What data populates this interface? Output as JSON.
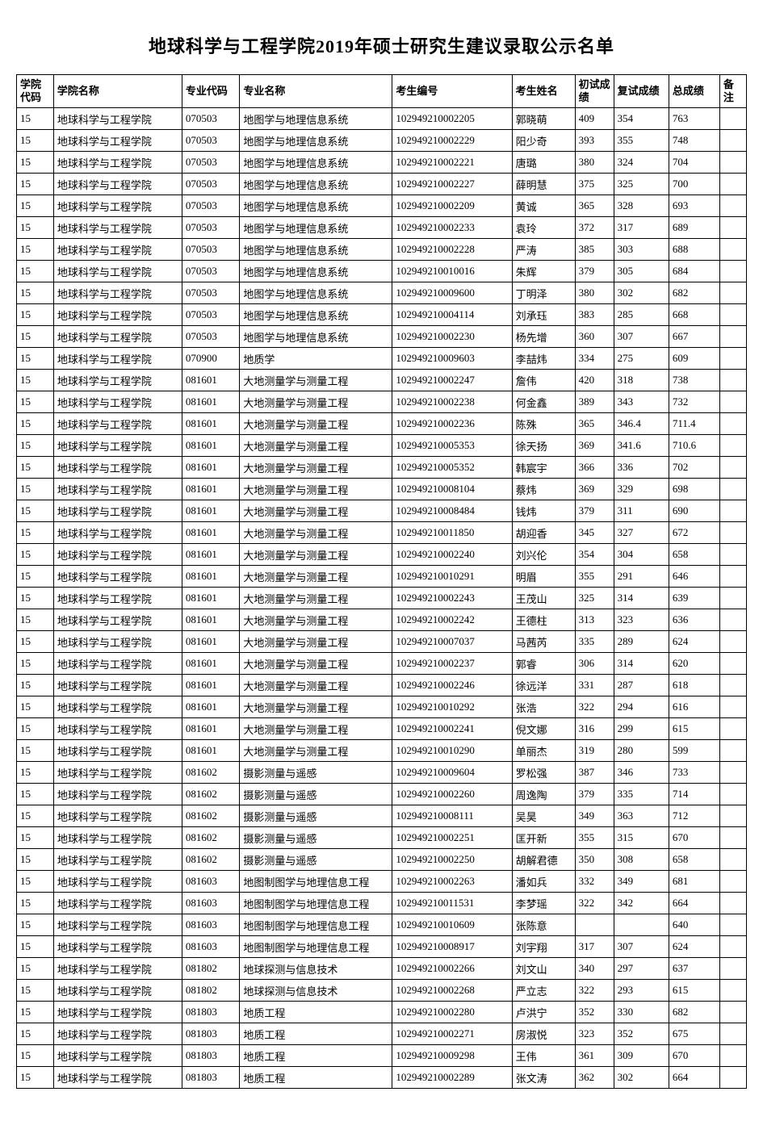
{
  "title": "地球科学与工程学院2019年硕士研究生建议录取公示名单",
  "columns": [
    "学院代码",
    "学院名称",
    "专业代码",
    "专业名称",
    "考生编号",
    "考生姓名",
    "初试成绩",
    "复试成绩",
    "总成绩",
    "备注"
  ],
  "rows": [
    [
      "15",
      "地球科学与工程学院",
      "070503",
      "地图学与地理信息系统",
      "102949210002205",
      "郭晓萌",
      "409",
      "354",
      "763",
      ""
    ],
    [
      "15",
      "地球科学与工程学院",
      "070503",
      "地图学与地理信息系统",
      "102949210002229",
      "阳少奇",
      "393",
      "355",
      "748",
      ""
    ],
    [
      "15",
      "地球科学与工程学院",
      "070503",
      "地图学与地理信息系统",
      "102949210002221",
      "唐璐",
      "380",
      "324",
      "704",
      ""
    ],
    [
      "15",
      "地球科学与工程学院",
      "070503",
      "地图学与地理信息系统",
      "102949210002227",
      "薛明慧",
      "375",
      "325",
      "700",
      ""
    ],
    [
      "15",
      "地球科学与工程学院",
      "070503",
      "地图学与地理信息系统",
      "102949210002209",
      "黄诚",
      "365",
      "328",
      "693",
      ""
    ],
    [
      "15",
      "地球科学与工程学院",
      "070503",
      "地图学与地理信息系统",
      "102949210002233",
      "袁玲",
      "372",
      "317",
      "689",
      ""
    ],
    [
      "15",
      "地球科学与工程学院",
      "070503",
      "地图学与地理信息系统",
      "102949210002228",
      "严涛",
      "385",
      "303",
      "688",
      ""
    ],
    [
      "15",
      "地球科学与工程学院",
      "070503",
      "地图学与地理信息系统",
      "102949210010016",
      "朱辉",
      "379",
      "305",
      "684",
      ""
    ],
    [
      "15",
      "地球科学与工程学院",
      "070503",
      "地图学与地理信息系统",
      "102949210009600",
      "丁明泽",
      "380",
      "302",
      "682",
      ""
    ],
    [
      "15",
      "地球科学与工程学院",
      "070503",
      "地图学与地理信息系统",
      "102949210004114",
      "刘承珏",
      "383",
      "285",
      "668",
      ""
    ],
    [
      "15",
      "地球科学与工程学院",
      "070503",
      "地图学与地理信息系统",
      "102949210002230",
      "杨先增",
      "360",
      "307",
      "667",
      ""
    ],
    [
      "15",
      "地球科学与工程学院",
      "070900",
      "地质学",
      "102949210009603",
      "李喆炜",
      "334",
      "275",
      "609",
      ""
    ],
    [
      "15",
      "地球科学与工程学院",
      "081601",
      "大地测量学与测量工程",
      "102949210002247",
      "詹伟",
      "420",
      "318",
      "738",
      ""
    ],
    [
      "15",
      "地球科学与工程学院",
      "081601",
      "大地测量学与测量工程",
      "102949210002238",
      "何金鑫",
      "389",
      "343",
      "732",
      ""
    ],
    [
      "15",
      "地球科学与工程学院",
      "081601",
      "大地测量学与测量工程",
      "102949210002236",
      "陈殊",
      "365",
      "346.4",
      "711.4",
      ""
    ],
    [
      "15",
      "地球科学与工程学院",
      "081601",
      "大地测量学与测量工程",
      "102949210005353",
      "徐天扬",
      "369",
      "341.6",
      "710.6",
      ""
    ],
    [
      "15",
      "地球科学与工程学院",
      "081601",
      "大地测量学与测量工程",
      "102949210005352",
      "韩宸宇",
      "366",
      "336",
      "702",
      ""
    ],
    [
      "15",
      "地球科学与工程学院",
      "081601",
      "大地测量学与测量工程",
      "102949210008104",
      "蔡炜",
      "369",
      "329",
      "698",
      ""
    ],
    [
      "15",
      "地球科学与工程学院",
      "081601",
      "大地测量学与测量工程",
      "102949210008484",
      "钱炜",
      "379",
      "311",
      "690",
      ""
    ],
    [
      "15",
      "地球科学与工程学院",
      "081601",
      "大地测量学与测量工程",
      "102949210011850",
      "胡迎香",
      "345",
      "327",
      "672",
      ""
    ],
    [
      "15",
      "地球科学与工程学院",
      "081601",
      "大地测量学与测量工程",
      "102949210002240",
      "刘兴伦",
      "354",
      "304",
      "658",
      ""
    ],
    [
      "15",
      "地球科学与工程学院",
      "081601",
      "大地测量学与测量工程",
      "102949210010291",
      "明眉",
      "355",
      "291",
      "646",
      ""
    ],
    [
      "15",
      "地球科学与工程学院",
      "081601",
      "大地测量学与测量工程",
      "102949210002243",
      "王茂山",
      "325",
      "314",
      "639",
      ""
    ],
    [
      "15",
      "地球科学与工程学院",
      "081601",
      "大地测量学与测量工程",
      "102949210002242",
      "王德柱",
      "313",
      "323",
      "636",
      ""
    ],
    [
      "15",
      "地球科学与工程学院",
      "081601",
      "大地测量学与测量工程",
      "102949210007037",
      "马茜芮",
      "335",
      "289",
      "624",
      ""
    ],
    [
      "15",
      "地球科学与工程学院",
      "081601",
      "大地测量学与测量工程",
      "102949210002237",
      "郭睿",
      "306",
      "314",
      "620",
      ""
    ],
    [
      "15",
      "地球科学与工程学院",
      "081601",
      "大地测量学与测量工程",
      "102949210002246",
      "徐远洋",
      "331",
      "287",
      "618",
      ""
    ],
    [
      "15",
      "地球科学与工程学院",
      "081601",
      "大地测量学与测量工程",
      "102949210010292",
      "张浩",
      "322",
      "294",
      "616",
      ""
    ],
    [
      "15",
      "地球科学与工程学院",
      "081601",
      "大地测量学与测量工程",
      "102949210002241",
      "倪文娜",
      "316",
      "299",
      "615",
      ""
    ],
    [
      "15",
      "地球科学与工程学院",
      "081601",
      "大地测量学与测量工程",
      "102949210010290",
      "单丽杰",
      "319",
      "280",
      "599",
      ""
    ],
    [
      "15",
      "地球科学与工程学院",
      "081602",
      "摄影测量与遥感",
      "102949210009604",
      "罗松强",
      "387",
      "346",
      "733",
      ""
    ],
    [
      "15",
      "地球科学与工程学院",
      "081602",
      "摄影测量与遥感",
      "102949210002260",
      "周逸陶",
      "379",
      "335",
      "714",
      ""
    ],
    [
      "15",
      "地球科学与工程学院",
      "081602",
      "摄影测量与遥感",
      "102949210008111",
      "吴昊",
      "349",
      "363",
      "712",
      ""
    ],
    [
      "15",
      "地球科学与工程学院",
      "081602",
      "摄影测量与遥感",
      "102949210002251",
      "匡开新",
      "355",
      "315",
      "670",
      ""
    ],
    [
      "15",
      "地球科学与工程学院",
      "081602",
      "摄影测量与遥感",
      "102949210002250",
      "胡解君德",
      "350",
      "308",
      "658",
      ""
    ],
    [
      "15",
      "地球科学与工程学院",
      "081603",
      "地图制图学与地理信息工程",
      "102949210002263",
      "潘如兵",
      "332",
      "349",
      "681",
      ""
    ],
    [
      "15",
      "地球科学与工程学院",
      "081603",
      "地图制图学与地理信息工程",
      "102949210011531",
      "李梦瑶",
      "322",
      "342",
      "664",
      ""
    ],
    [
      "15",
      "地球科学与工程学院",
      "081603",
      "地图制图学与地理信息工程",
      "102949210010609",
      "张陈意",
      "",
      "",
      "640",
      ""
    ],
    [
      "15",
      "地球科学与工程学院",
      "081603",
      "地图制图学与地理信息工程",
      "102949210008917",
      "刘宇翔",
      "317",
      "307",
      "624",
      ""
    ],
    [
      "15",
      "地球科学与工程学院",
      "081802",
      "地球探测与信息技术",
      "102949210002266",
      "刘文山",
      "340",
      "297",
      "637",
      ""
    ],
    [
      "15",
      "地球科学与工程学院",
      "081802",
      "地球探测与信息技术",
      "102949210002268",
      "严立志",
      "322",
      "293",
      "615",
      ""
    ],
    [
      "15",
      "地球科学与工程学院",
      "081803",
      "地质工程",
      "102949210002280",
      "卢洪宁",
      "352",
      "330",
      "682",
      ""
    ],
    [
      "15",
      "地球科学与工程学院",
      "081803",
      "地质工程",
      "102949210002271",
      "房淑悦",
      "323",
      "352",
      "675",
      ""
    ],
    [
      "15",
      "地球科学与工程学院",
      "081803",
      "地质工程",
      "102949210009298",
      "王伟",
      "361",
      "309",
      "670",
      ""
    ],
    [
      "15",
      "地球科学与工程学院",
      "081803",
      "地质工程",
      "102949210002289",
      "张文涛",
      "362",
      "302",
      "664",
      ""
    ]
  ]
}
